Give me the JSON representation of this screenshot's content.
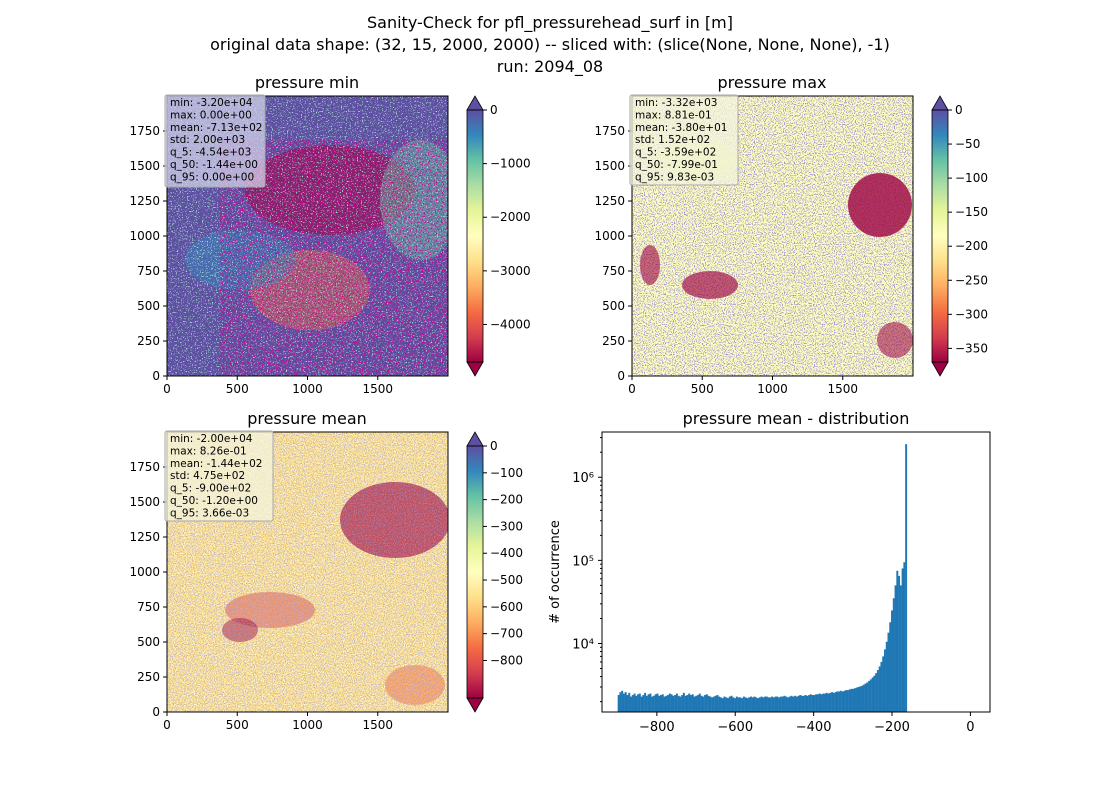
{
  "suptitle": {
    "line1": "Sanity-Check for pfl_pressurehead_surf in [m]",
    "line2": "original data shape: (32, 15, 2000, 2000) -- sliced with: (slice(None, None, None), -1)",
    "line3": "run: 2094_08"
  },
  "colors": {
    "spectral": [
      "#9e0142",
      "#d53e4f",
      "#f46d43",
      "#fdae61",
      "#fee08b",
      "#ffffbf",
      "#e6f598",
      "#abdda4",
      "#66c2a5",
      "#3288bd",
      "#5e4fa2"
    ],
    "hist_bar": "#1f77b4"
  },
  "chart_data": [
    {
      "type": "heatmap",
      "title": "pressure min",
      "xlim": [
        0,
        2000
      ],
      "ylim": [
        0,
        2000
      ],
      "x_ticks": [
        "0",
        "500",
        "1000",
        "1500"
      ],
      "y_ticks": [
        "0",
        "250",
        "500",
        "750",
        "1000",
        "1250",
        "1500",
        "1750"
      ],
      "colorbar": {
        "min": -4700,
        "max": 0,
        "extend": "both",
        "ticks": [
          0,
          -1000,
          -2000,
          -3000,
          -4000
        ],
        "tick_labels": [
          "0",
          "−1000",
          "−2000",
          "−3000",
          "−4000"
        ]
      },
      "stats": [
        "min: -3.20e+04",
        "max: 0.00e+00",
        "mean: -7.13e+02",
        "std: 2.00e+03",
        "q_5: -4.54e+03",
        "q_50: -1.44e+00",
        "q_95: 0.00e+00"
      ]
    },
    {
      "type": "heatmap",
      "title": "pressure max",
      "xlim": [
        0,
        2000
      ],
      "ylim": [
        0,
        2000
      ],
      "x_ticks": [
        "0",
        "500",
        "1000",
        "1500"
      ],
      "y_ticks": [
        "0",
        "250",
        "500",
        "750",
        "1000",
        "1250",
        "1500",
        "1750"
      ],
      "colorbar": {
        "min": -370,
        "max": 0,
        "extend": "both",
        "ticks": [
          0,
          -50,
          -100,
          -150,
          -200,
          -250,
          -300,
          -350
        ],
        "tick_labels": [
          "0",
          "−50",
          "−100",
          "−150",
          "−200",
          "−250",
          "−300",
          "−350"
        ]
      },
      "stats": [
        "min: -3.32e+03",
        "max: 8.81e-01",
        "mean: -3.80e+01",
        "std: 1.52e+02",
        "q_5: -3.59e+02",
        "q_50: -7.99e-01",
        "q_95: 9.83e-03"
      ]
    },
    {
      "type": "heatmap",
      "title": "pressure mean",
      "xlim": [
        0,
        2000
      ],
      "ylim": [
        0,
        2000
      ],
      "x_ticks": [
        "0",
        "500",
        "1000",
        "1500"
      ],
      "y_ticks": [
        "0",
        "250",
        "500",
        "750",
        "1000",
        "1250",
        "1500",
        "1750"
      ],
      "colorbar": {
        "min": -940,
        "max": 0,
        "extend": "both",
        "ticks": [
          0,
          -100,
          -200,
          -300,
          -400,
          -500,
          -600,
          -700,
          -800
        ],
        "tick_labels": [
          "0",
          "−100",
          "−200",
          "−300",
          "−400",
          "−500",
          "−600",
          "−700",
          "−800"
        ]
      },
      "stats": [
        "min: -2.00e+04",
        "max: 8.26e-01",
        "mean: -1.44e+02",
        "std: 4.75e+02",
        "q_5: -9.00e+02",
        "q_50: -1.20e+00",
        "q_95: 3.66e-03"
      ]
    },
    {
      "type": "bar",
      "title": "pressure mean - distribution",
      "ylabel": "# of occurrence",
      "yscale": "log",
      "xlim": [
        -940,
        50
      ],
      "ylim": [
        1500,
        3500000
      ],
      "x_ticks": [
        -800,
        -600,
        -400,
        -200,
        0
      ],
      "x_tick_labels": [
        "−800",
        "−600",
        "−400",
        "−200",
        "0"
      ],
      "y_ticks": [
        10000,
        100000,
        1000000
      ],
      "y_tick_labels": [
        "10⁴",
        "10⁵",
        "10⁶"
      ],
      "bin_width": 4.5,
      "x_start": -900,
      "values": [
        2400,
        2600,
        2700,
        2500,
        2600,
        2400,
        2550,
        2300,
        2400,
        2500,
        2350,
        2450,
        2500,
        2300,
        2400,
        2550,
        2350,
        2450,
        2500,
        2300,
        2350,
        2450,
        2500,
        2350,
        2400,
        2450,
        2300,
        2350,
        2400,
        2500,
        2450,
        2350,
        2400,
        2500,
        2350,
        2300,
        2400,
        2550,
        2350,
        2400,
        2500,
        2400,
        2450,
        2300,
        2350,
        2400,
        2500,
        2350,
        2300,
        2400,
        2450,
        2350,
        2300,
        2250,
        2300,
        2350,
        2400,
        2300,
        2250,
        2200,
        2300,
        2250,
        2200,
        2300,
        2350,
        2250,
        2200,
        2300,
        2250,
        2250,
        2200,
        2300,
        2250,
        2200,
        2250,
        2300,
        2250,
        2300,
        2250,
        2200,
        2250,
        2300,
        2250,
        2300,
        2300,
        2250,
        2250,
        2300,
        2250,
        2300,
        2300,
        2250,
        2300,
        2300,
        2350,
        2300,
        2250,
        2300,
        2350,
        2300,
        2350,
        2300,
        2350,
        2400,
        2350,
        2350,
        2400,
        2350,
        2400,
        2450,
        2400,
        2400,
        2450,
        2450,
        2500,
        2450,
        2500,
        2500,
        2550,
        2500,
        2550,
        2600,
        2550,
        2600,
        2650,
        2650,
        2700,
        2650,
        2700,
        2750,
        2750,
        2800,
        2850,
        2850,
        2900,
        2950,
        3000,
        3050,
        3100,
        3200,
        3300,
        3400,
        3550,
        3700,
        3900,
        4100,
        4400,
        4800,
        5300,
        6000,
        7000,
        8500,
        10500,
        13500,
        18000,
        25000,
        35000,
        50000,
        75000,
        65000,
        50000,
        80000,
        95000,
        2500000
      ]
    }
  ]
}
